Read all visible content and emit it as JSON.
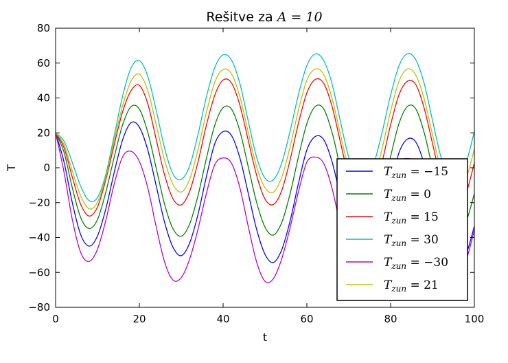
{
  "chart_data": {
    "type": "line",
    "title_prefix": "Rešitve za ",
    "title_math": "A = 10",
    "xlabel": "t",
    "ylabel": "T",
    "xlim": [
      0,
      100
    ],
    "ylim": [
      -80,
      80
    ],
    "xticks": [
      "0",
      "20",
      "40",
      "60",
      "80",
      "100"
    ],
    "yticks": [
      "−80",
      "−60",
      "−40",
      "−20",
      "0",
      "20",
      "40",
      "60",
      "80"
    ],
    "grid": false,
    "legend_position": "lower-right",
    "x": [
      0,
      2,
      4,
      6,
      8,
      10,
      12,
      14,
      16,
      18,
      20,
      22,
      24,
      26,
      28,
      30,
      32,
      34,
      36,
      38,
      40,
      42,
      44,
      46,
      48,
      50,
      52,
      54,
      56,
      58,
      60,
      62,
      64,
      66,
      68,
      70,
      72,
      74,
      76,
      78,
      80,
      82,
      84,
      86,
      88,
      90,
      92,
      94,
      96,
      98,
      100
    ],
    "series": [
      {
        "name": "T_zun = −15",
        "legend_value": "−15",
        "color": "#0000ff",
        "values": [
          20,
          3.4,
          -20.2,
          -38.4,
          -44.9,
          -39.1,
          -23.5,
          -2.6,
          16,
          25.8,
          23.3,
          10.3,
          -10.1,
          -31,
          -45.4,
          -50.4,
          -43.2,
          -26.8,
          -5.2,
          13.7,
          20.7,
          18.5,
          5.7,
          -14.6,
          -35.3,
          -49.6,
          -54.3,
          -47,
          -30.5,
          -8.9,
          10.2,
          17.9,
          16.2,
          3.6,
          -16.6,
          -37.3,
          -51.5,
          -56.1,
          -48.8,
          -32.2,
          -10.6,
          8.6,
          16.4,
          14.8,
          2.2,
          -18,
          -38.7,
          -52.8,
          -57.4,
          -50,
          -33.4
        ]
      },
      {
        "name": "T_zun = 0",
        "legend_value": "0",
        "color": "#008000",
        "values": [
          20,
          9,
          -11.6,
          -28.6,
          -34.8,
          -29.7,
          -13.9,
          6.1,
          24.6,
          35,
          33.6,
          20.4,
          0,
          -20.7,
          -34.8,
          -39.2,
          -32.3,
          -16,
          5.2,
          24.3,
          34.4,
          33.6,
          21.1,
          0.6,
          -19.8,
          -34,
          -38.6,
          -31.4,
          -14.9,
          6.4,
          25.3,
          35.1,
          33.8,
          20.4,
          -0.2,
          -20.7,
          -34.6,
          -38.7,
          -31.3,
          -14.8,
          6.5,
          25.3,
          35.1,
          33.8,
          20.3,
          -0.2,
          -20.7,
          -34.6,
          -38.7,
          -31.3,
          -14.8
        ]
      },
      {
        "name": "T_zun = 15",
        "legend_value": "15",
        "color": "#ff0000",
        "values": [
          20,
          11.6,
          -5.5,
          -21,
          -27.7,
          -22.5,
          -6.8,
          13.2,
          32.1,
          44.1,
          47.2,
          36.8,
          16.5,
          -3.9,
          -17.6,
          -21.3,
          -13.6,
          3.3,
          24.3,
          41.5,
          50.3,
          48.6,
          35.9,
          15.7,
          -4.3,
          -17.9,
          -21.1,
          -13.1,
          4.5,
          25.6,
          42.9,
          50.6,
          48.5,
          35.3,
          14.8,
          -5.4,
          -18.8,
          -22,
          -13.9,
          3.6,
          24.6,
          41.8,
          49.6,
          47.7,
          34.3,
          13.9,
          -6.3,
          -19.7,
          -22.9,
          -14.9,
          2.8
        ]
      },
      {
        "name": "T_zun = 30",
        "legend_value": "30",
        "color": "#00bfbf",
        "values": [
          20,
          15.3,
          2.9,
          -10.6,
          -18.8,
          -17.1,
          -3.7,
          18.5,
          41.1,
          57.1,
          61.4,
          52.5,
          33.2,
          11.5,
          -3.4,
          -6.7,
          1,
          19,
          40.5,
          57.4,
          64.7,
          61.7,
          48.3,
          26.8,
          6.1,
          -5.9,
          -6.9,
          2.7,
          21,
          42,
          58.6,
          65.2,
          61.6,
          48.2,
          26.7,
          5.9,
          -6.1,
          -7,
          2.4,
          20.6,
          41.6,
          58.4,
          65.4,
          61.9,
          48.5,
          27.2,
          6.4,
          -5.7,
          -6.6,
          2.6,
          20.8
        ]
      },
      {
        "name": "T_zun = −30",
        "legend_value": "−30",
        "color": "#bf00bf",
        "values": [
          20,
          -2.4,
          -29.8,
          -48.6,
          -53.7,
          -46.7,
          -30.1,
          -9.3,
          6.3,
          9.4,
          3.6,
          -11.4,
          -33.6,
          -53.8,
          -64.3,
          -63,
          -52.4,
          -35.3,
          -14.8,
          1.7,
          5.6,
          2.6,
          -11.4,
          -33.6,
          -54,
          -65.1,
          -63.6,
          -52.2,
          -34.3,
          -13.7,
          3.2,
          6.1,
          2.6,
          -11.6,
          -33.5,
          -53.9,
          -65.4,
          -64.4,
          -53.3,
          -35.5,
          -14.9,
          2.1,
          5.3,
          2,
          -12.2,
          -34.1,
          -54.4,
          -65.8,
          -64.8,
          -53.6,
          -35.8
        ]
      },
      {
        "name": "T_zun = 21",
        "legend_value": "21",
        "color": "#bfbf00",
        "values": [
          20,
          13.3,
          -2,
          -16.1,
          -23.5,
          -19.8,
          -5.3,
          15.7,
          35.4,
          49.6,
          53.6,
          44.3,
          24.9,
          4.6,
          -9.4,
          -13.9,
          -6.7,
          10.3,
          31.6,
          48.9,
          56.3,
          53.8,
          40.8,
          20.3,
          0.6,
          -11.4,
          -14,
          -5.5,
          12,
          33.1,
          50.1,
          56.6,
          53.5,
          40,
          19.3,
          -0.5,
          -12.4,
          -14.7,
          -6.4,
          11.2,
          32.4,
          49.5,
          56.6,
          53.2,
          39.7,
          19,
          -0.8,
          -12.7,
          -15,
          -6.7,
          10.9
        ]
      }
    ]
  }
}
